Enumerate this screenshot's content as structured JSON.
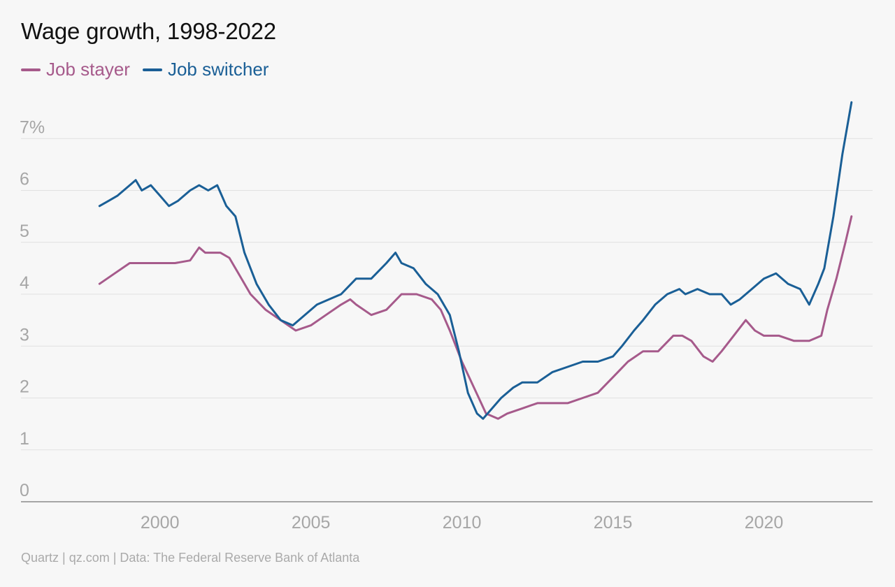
{
  "chart_data": {
    "type": "line",
    "title": "Wage growth, 1998-2022",
    "xlabel": "",
    "ylabel": "",
    "ylim": [
      0,
      7
    ],
    "xlim": [
      1995.4,
      2023.6
    ],
    "x_ticks": [
      "2000",
      "2005",
      "2010",
      "2015",
      "2020"
    ],
    "y_ticks": [
      "0",
      "1",
      "2",
      "3",
      "4",
      "5",
      "6",
      "7%"
    ],
    "grid": "horizontal",
    "legend_position": "top-left",
    "series": [
      {
        "name": "Job stayer",
        "color": "#a65a8b",
        "points": [
          [
            1998.0,
            4.2
          ],
          [
            1998.5,
            4.4
          ],
          [
            1999.0,
            4.6
          ],
          [
            1999.5,
            4.6
          ],
          [
            2000.0,
            4.6
          ],
          [
            2000.5,
            4.6
          ],
          [
            2001.0,
            4.65
          ],
          [
            2001.3,
            4.9
          ],
          [
            2001.5,
            4.8
          ],
          [
            2002.0,
            4.8
          ],
          [
            2002.3,
            4.7
          ],
          [
            2002.6,
            4.4
          ],
          [
            2003.0,
            4.0
          ],
          [
            2003.5,
            3.7
          ],
          [
            2004.0,
            3.5
          ],
          [
            2004.5,
            3.3
          ],
          [
            2005.0,
            3.4
          ],
          [
            2005.5,
            3.6
          ],
          [
            2006.0,
            3.8
          ],
          [
            2006.3,
            3.9
          ],
          [
            2006.5,
            3.8
          ],
          [
            2007.0,
            3.6
          ],
          [
            2007.5,
            3.7
          ],
          [
            2008.0,
            4.0
          ],
          [
            2008.5,
            4.0
          ],
          [
            2009.0,
            3.9
          ],
          [
            2009.3,
            3.7
          ],
          [
            2009.6,
            3.3
          ],
          [
            2010.0,
            2.7
          ],
          [
            2010.4,
            2.2
          ],
          [
            2010.8,
            1.7
          ],
          [
            2011.2,
            1.6
          ],
          [
            2011.5,
            1.7
          ],
          [
            2012.0,
            1.8
          ],
          [
            2012.5,
            1.9
          ],
          [
            2013.0,
            1.9
          ],
          [
            2013.5,
            1.9
          ],
          [
            2014.0,
            2.0
          ],
          [
            2014.5,
            2.1
          ],
          [
            2015.0,
            2.4
          ],
          [
            2015.5,
            2.7
          ],
          [
            2016.0,
            2.9
          ],
          [
            2016.5,
            2.9
          ],
          [
            2017.0,
            3.2
          ],
          [
            2017.3,
            3.2
          ],
          [
            2017.6,
            3.1
          ],
          [
            2018.0,
            2.8
          ],
          [
            2018.3,
            2.7
          ],
          [
            2018.6,
            2.9
          ],
          [
            2019.0,
            3.2
          ],
          [
            2019.4,
            3.5
          ],
          [
            2019.7,
            3.3
          ],
          [
            2020.0,
            3.2
          ],
          [
            2020.5,
            3.2
          ],
          [
            2021.0,
            3.1
          ],
          [
            2021.5,
            3.1
          ],
          [
            2021.9,
            3.2
          ],
          [
            2022.1,
            3.7
          ],
          [
            2022.4,
            4.3
          ],
          [
            2022.7,
            5.0
          ],
          [
            2022.9,
            5.5
          ]
        ]
      },
      {
        "name": "Job switcher",
        "color": "#1a5f96",
        "points": [
          [
            1998.0,
            5.7
          ],
          [
            1998.3,
            5.8
          ],
          [
            1998.6,
            5.9
          ],
          [
            1999.0,
            6.1
          ],
          [
            1999.2,
            6.2
          ],
          [
            1999.4,
            6.0
          ],
          [
            1999.7,
            6.1
          ],
          [
            2000.0,
            5.9
          ],
          [
            2000.3,
            5.7
          ],
          [
            2000.6,
            5.8
          ],
          [
            2001.0,
            6.0
          ],
          [
            2001.3,
            6.1
          ],
          [
            2001.6,
            6.0
          ],
          [
            2001.9,
            6.1
          ],
          [
            2002.2,
            5.7
          ],
          [
            2002.5,
            5.5
          ],
          [
            2002.8,
            4.8
          ],
          [
            2003.2,
            4.2
          ],
          [
            2003.6,
            3.8
          ],
          [
            2004.0,
            3.5
          ],
          [
            2004.4,
            3.4
          ],
          [
            2004.8,
            3.6
          ],
          [
            2005.2,
            3.8
          ],
          [
            2005.6,
            3.9
          ],
          [
            2006.0,
            4.0
          ],
          [
            2006.5,
            4.3
          ],
          [
            2007.0,
            4.3
          ],
          [
            2007.5,
            4.6
          ],
          [
            2007.8,
            4.8
          ],
          [
            2008.0,
            4.6
          ],
          [
            2008.4,
            4.5
          ],
          [
            2008.8,
            4.2
          ],
          [
            2009.2,
            4.0
          ],
          [
            2009.6,
            3.6
          ],
          [
            2009.9,
            2.9
          ],
          [
            2010.2,
            2.1
          ],
          [
            2010.5,
            1.7
          ],
          [
            2010.7,
            1.6
          ],
          [
            2011.0,
            1.8
          ],
          [
            2011.3,
            2.0
          ],
          [
            2011.7,
            2.2
          ],
          [
            2012.0,
            2.3
          ],
          [
            2012.5,
            2.3
          ],
          [
            2013.0,
            2.5
          ],
          [
            2013.5,
            2.6
          ],
          [
            2014.0,
            2.7
          ],
          [
            2014.5,
            2.7
          ],
          [
            2015.0,
            2.8
          ],
          [
            2015.3,
            3.0
          ],
          [
            2015.7,
            3.3
          ],
          [
            2016.0,
            3.5
          ],
          [
            2016.4,
            3.8
          ],
          [
            2016.8,
            4.0
          ],
          [
            2017.2,
            4.1
          ],
          [
            2017.4,
            4.0
          ],
          [
            2017.8,
            4.1
          ],
          [
            2018.2,
            4.0
          ],
          [
            2018.6,
            4.0
          ],
          [
            2018.9,
            3.8
          ],
          [
            2019.2,
            3.9
          ],
          [
            2019.6,
            4.1
          ],
          [
            2020.0,
            4.3
          ],
          [
            2020.4,
            4.4
          ],
          [
            2020.8,
            4.2
          ],
          [
            2021.2,
            4.1
          ],
          [
            2021.5,
            3.8
          ],
          [
            2021.8,
            4.2
          ],
          [
            2022.0,
            4.5
          ],
          [
            2022.3,
            5.5
          ],
          [
            2022.6,
            6.7
          ],
          [
            2022.9,
            7.7
          ]
        ]
      }
    ],
    "source": "Quartz | qz.com | Data: The Federal Reserve Bank of Atlanta"
  }
}
